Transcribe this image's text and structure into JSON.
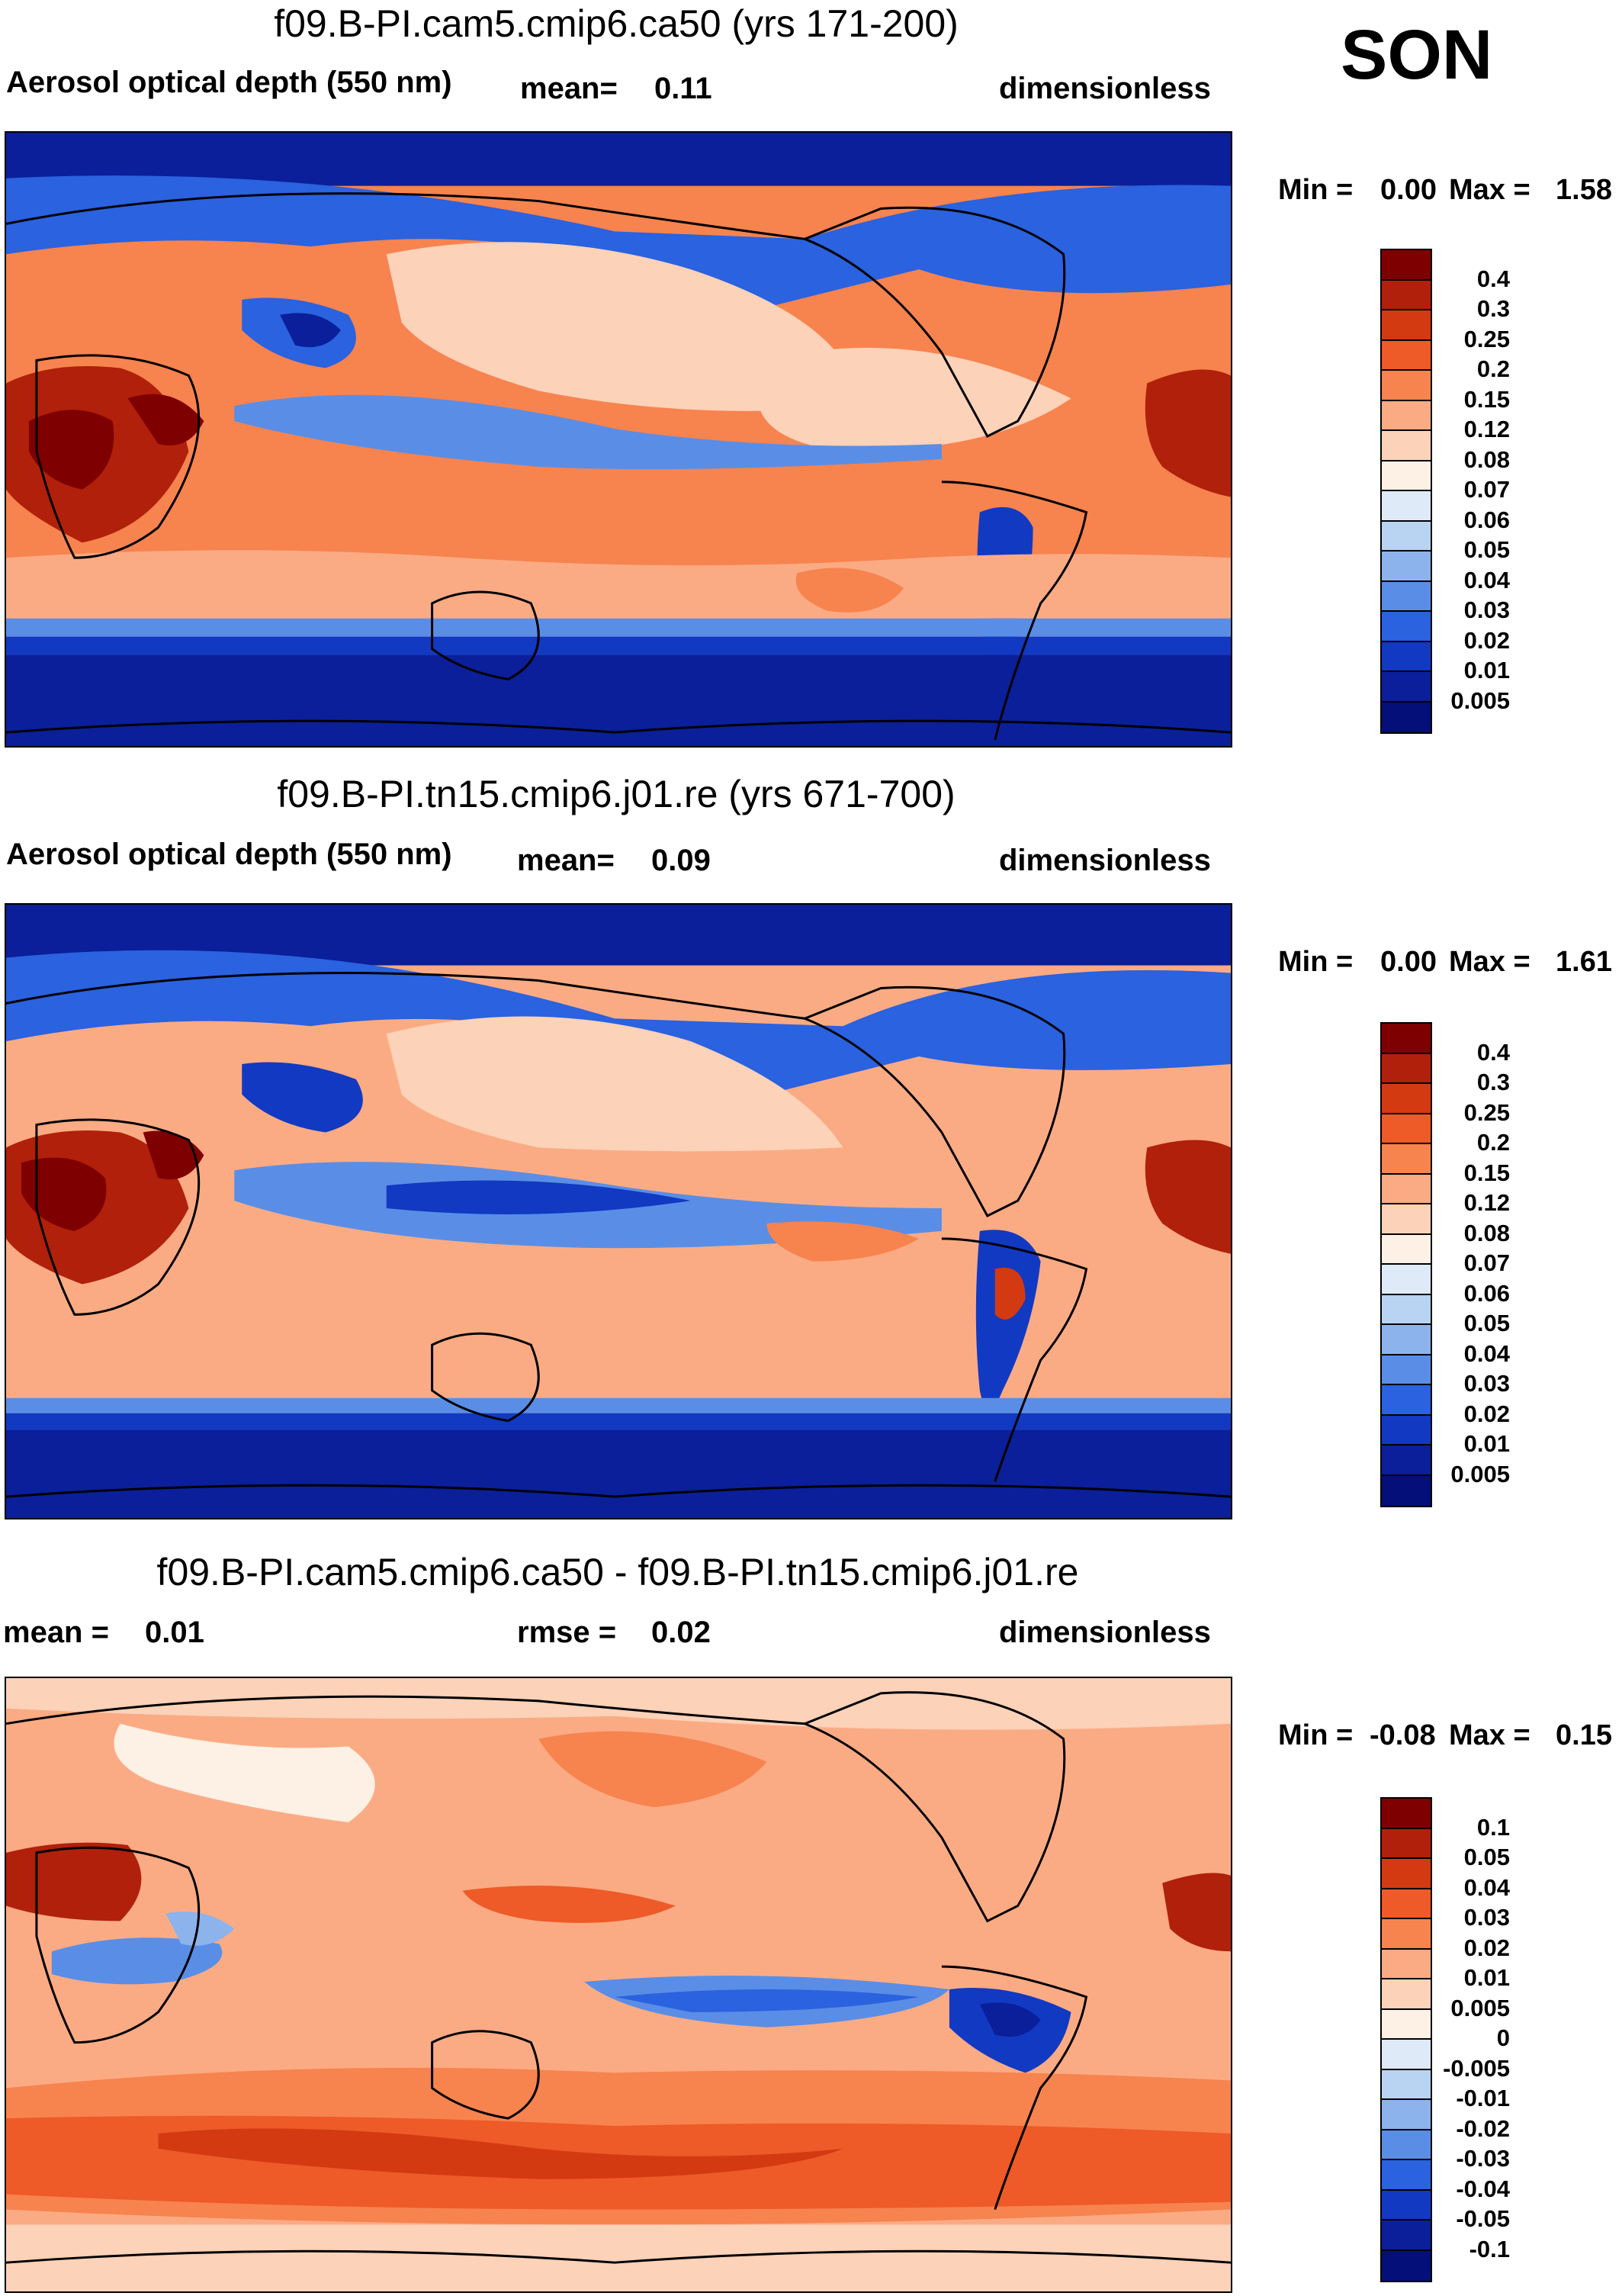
{
  "season": "SON",
  "panels": [
    {
      "title": "f09.B-PI.cam5.cmip6.ca50 (yrs 171-200)",
      "left_label": "Aerosol optical depth (550 nm)",
      "mid_label": "mean=",
      "mid_value": "0.11",
      "right_label": "dimensionless",
      "min_label": "Min =",
      "min_value": "0.00",
      "max_label": "Max =",
      "max_value": "1.58",
      "levels": [
        "0.4",
        "0.3",
        "0.25",
        "0.2",
        "0.15",
        "0.12",
        "0.08",
        "0.07",
        "0.06",
        "0.05",
        "0.04",
        "0.03",
        "0.02",
        "0.01",
        "0.005"
      ],
      "colors": [
        "#7f0000",
        "#b0200a",
        "#d33a12",
        "#ee5a28",
        "#f7834f",
        "#fbab84",
        "#fcd2b8",
        "#fdf0e4",
        "#dfeaf8",
        "#b9d3f2",
        "#8cb3ec",
        "#5a8ee6",
        "#2a62df",
        "#1239c2",
        "#0a1f99",
        "#040f7a"
      ]
    },
    {
      "title": "f09.B-PI.tn15.cmip6.j01.re (yrs 671-700)",
      "left_label": "Aerosol optical depth (550 nm)",
      "mid_label": "mean=",
      "mid_value": "0.09",
      "right_label": "dimensionless",
      "min_label": "Min =",
      "min_value": "0.00",
      "max_label": "Max =",
      "max_value": "1.61",
      "levels": [
        "0.4",
        "0.3",
        "0.25",
        "0.2",
        "0.15",
        "0.12",
        "0.08",
        "0.07",
        "0.06",
        "0.05",
        "0.04",
        "0.03",
        "0.02",
        "0.01",
        "0.005"
      ],
      "colors": [
        "#7f0000",
        "#b0200a",
        "#d33a12",
        "#ee5a28",
        "#f7834f",
        "#fbab84",
        "#fcd2b8",
        "#fdf0e4",
        "#dfeaf8",
        "#b9d3f2",
        "#8cb3ec",
        "#5a8ee6",
        "#2a62df",
        "#1239c2",
        "#0a1f99",
        "#040f7a"
      ]
    },
    {
      "title": "f09.B-PI.cam5.cmip6.ca50 - f09.B-PI.tn15.cmip6.j01.re",
      "left_label": "mean =",
      "left_value": "0.01",
      "mid_label": "rmse =",
      "mid_value": "0.02",
      "right_label": "dimensionless",
      "min_label": "Min =",
      "min_value": "-0.08",
      "max_label": "Max =",
      "max_value": "0.15",
      "levels": [
        "0.1",
        "0.05",
        "0.04",
        "0.03",
        "0.02",
        "0.01",
        "0.005",
        "0",
        "-0.005",
        "-0.01",
        "-0.02",
        "-0.03",
        "-0.04",
        "-0.05",
        "-0.1"
      ],
      "colors": [
        "#7f0000",
        "#b0200a",
        "#d33a12",
        "#ee5a28",
        "#f7834f",
        "#fbab84",
        "#fcd2b8",
        "#fdf0e4",
        "#dfeaf8",
        "#b9d3f2",
        "#8cb3ec",
        "#5a8ee6",
        "#2a62df",
        "#1239c2",
        "#0a1f99",
        "#040f7a"
      ]
    }
  ]
}
